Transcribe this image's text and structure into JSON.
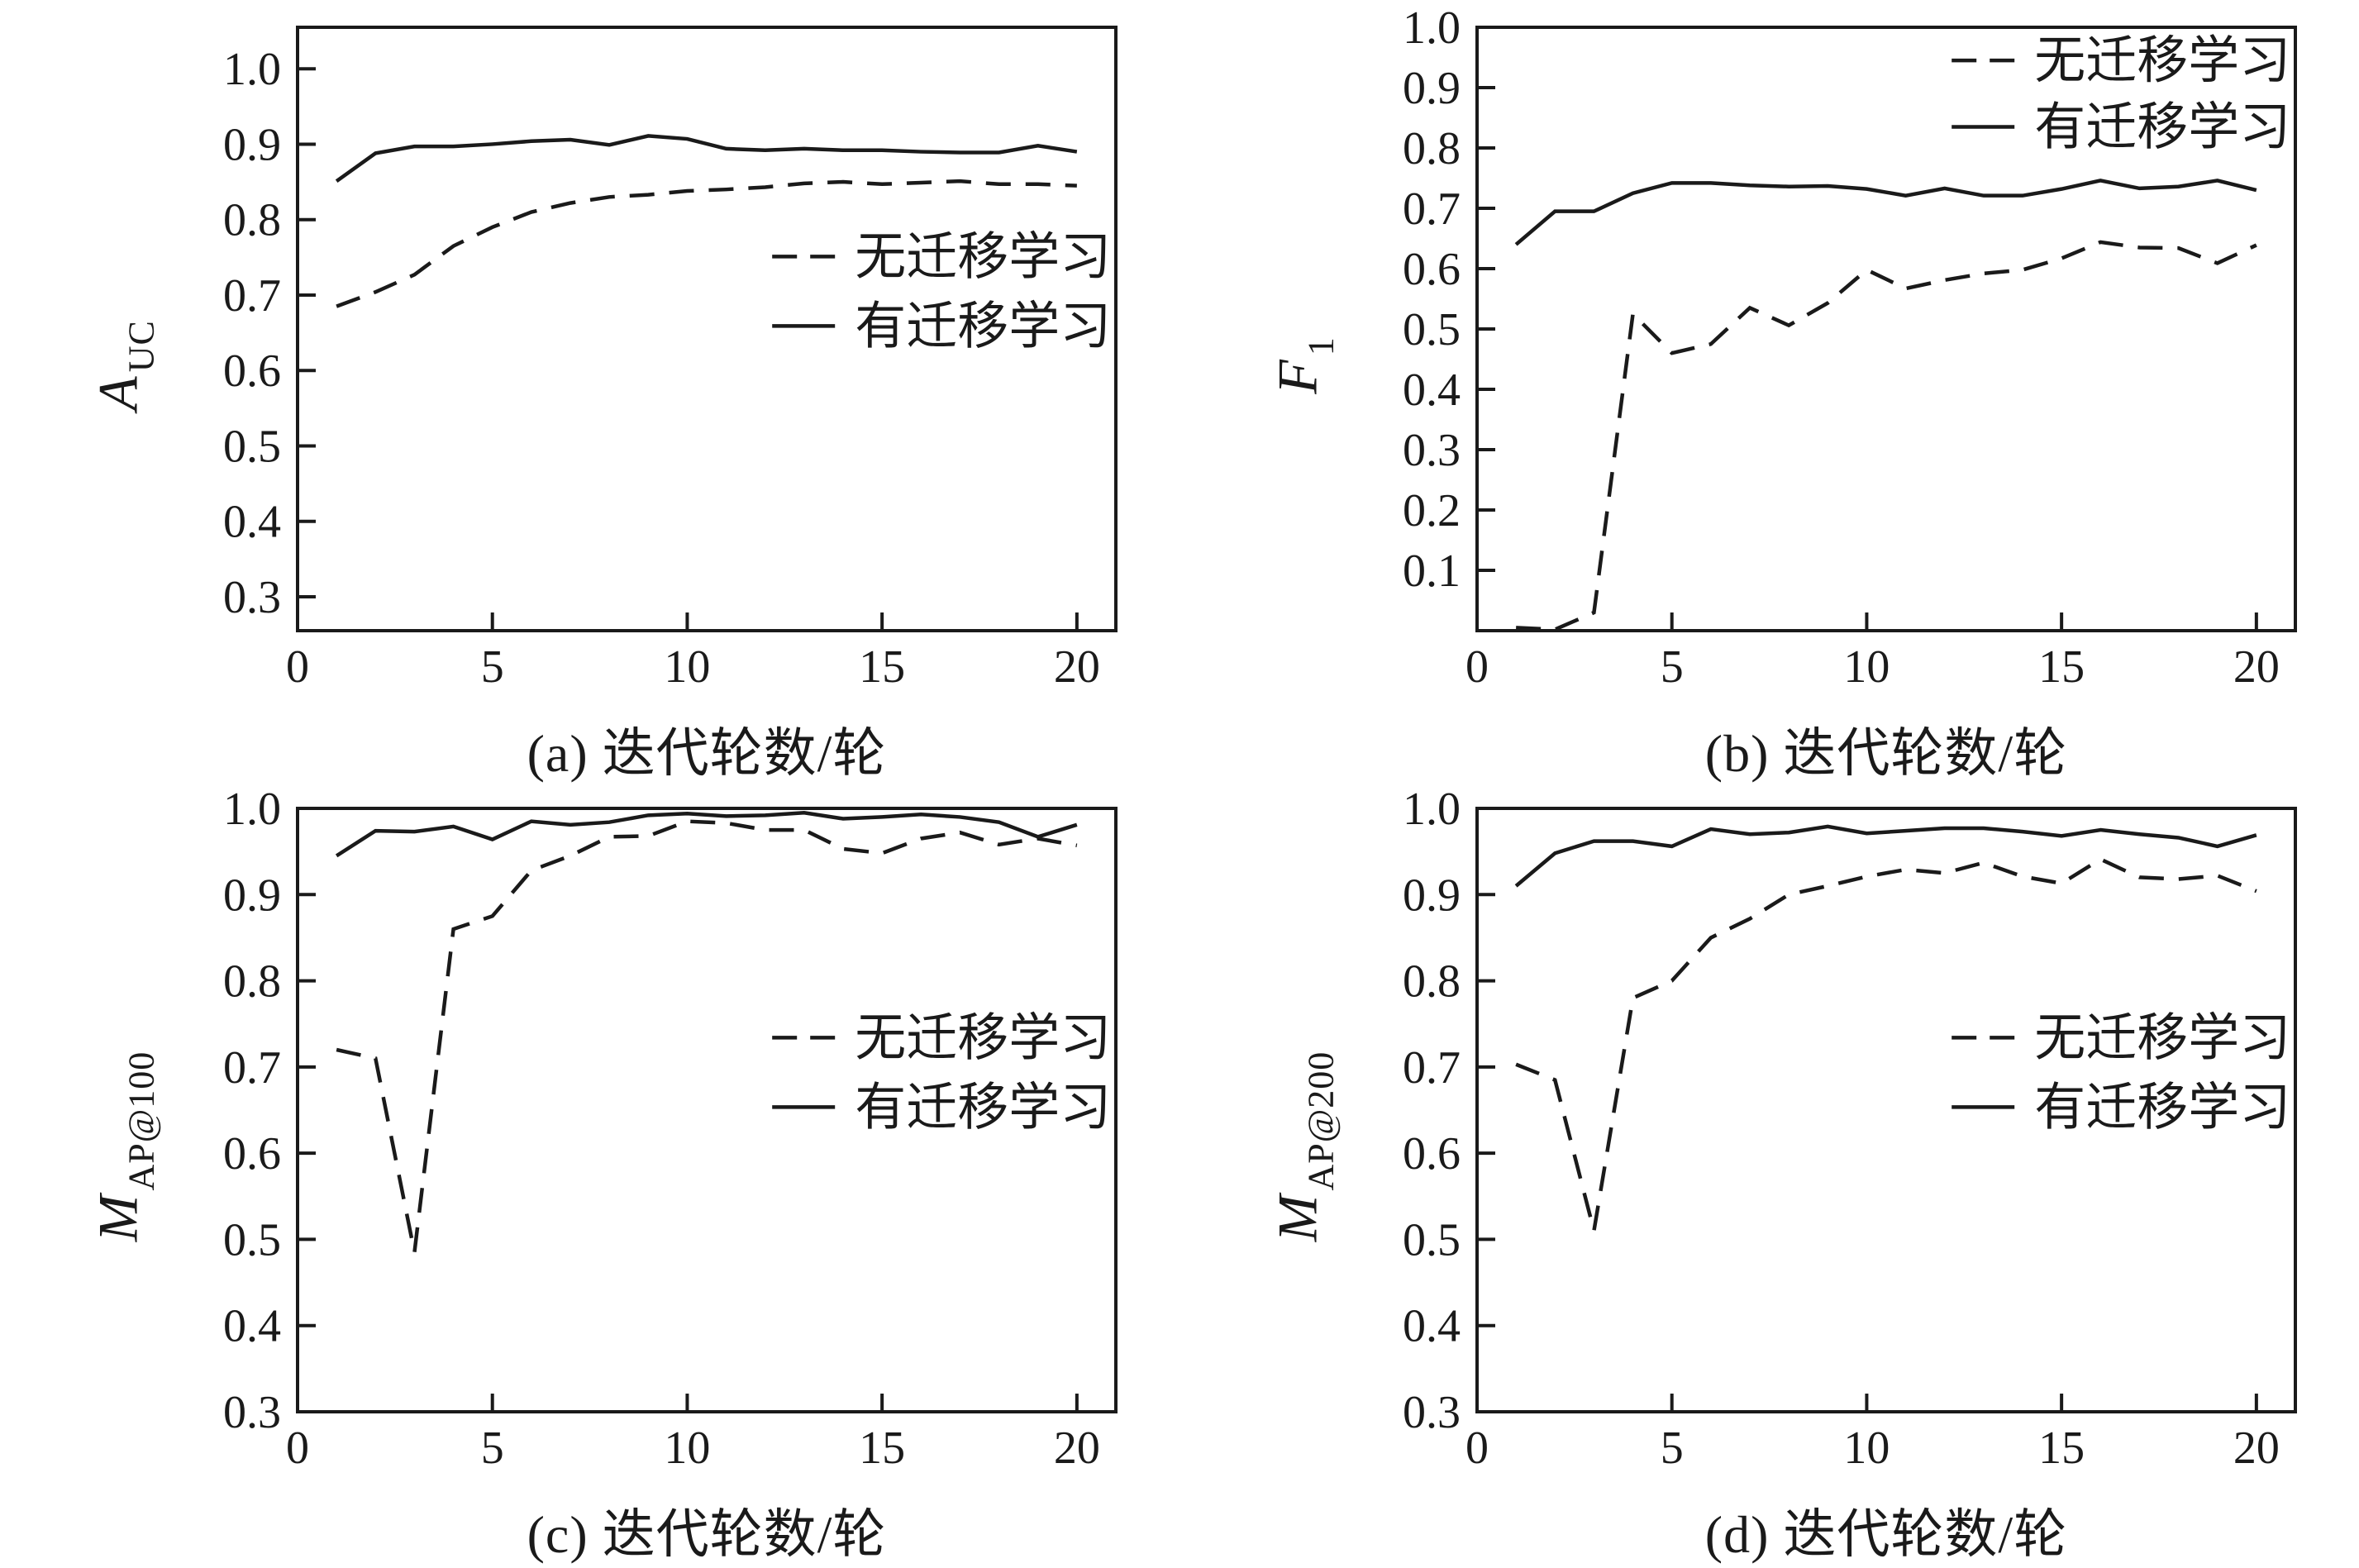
{
  "figure": {
    "background": "#ffffff",
    "line_color": "#1a1a1a"
  },
  "legend": {
    "no_transfer": "无迁移学习",
    "transfer": "有迁移学习"
  },
  "chart_data": [
    {
      "type": "line",
      "panel": "a",
      "caption": "(a) 迭代轮数/轮",
      "ylabel_main": "A",
      "ylabel_sub": "UC",
      "x": [
        1,
        2,
        3,
        4,
        5,
        6,
        7,
        8,
        9,
        10,
        11,
        12,
        13,
        14,
        15,
        16,
        17,
        18,
        19,
        20
      ],
      "xticks": [
        "0",
        "5",
        "10",
        "15",
        "20"
      ],
      "yticks": [
        "0.3",
        "0.4",
        "0.5",
        "0.6",
        "0.7",
        "0.8",
        "0.9",
        "1.0"
      ],
      "xlim": [
        0,
        21
      ],
      "ylim": [
        0.255,
        1.055
      ],
      "grid": false,
      "legend_position": "center-right",
      "series": [
        {
          "name": "无迁移学习",
          "style": "dashed",
          "values": [
            0.685,
            0.704,
            0.727,
            0.765,
            0.79,
            0.81,
            0.822,
            0.83,
            0.833,
            0.838,
            0.84,
            0.843,
            0.848,
            0.85,
            0.847,
            0.849,
            0.851,
            0.847,
            0.847,
            0.845
          ]
        },
        {
          "name": "有迁移学习",
          "style": "solid",
          "values": [
            0.851,
            0.888,
            0.897,
            0.897,
            0.9,
            0.904,
            0.906,
            0.899,
            0.911,
            0.907,
            0.894,
            0.892,
            0.894,
            0.892,
            0.892,
            0.89,
            0.889,
            0.889,
            0.898,
            0.89
          ]
        }
      ]
    },
    {
      "type": "line",
      "panel": "b",
      "caption": "(b) 迭代轮数/轮",
      "ylabel_main": "F",
      "ylabel_sub": "1",
      "x": [
        1,
        2,
        3,
        4,
        5,
        6,
        7,
        8,
        9,
        10,
        11,
        12,
        13,
        14,
        15,
        16,
        17,
        18,
        19,
        20
      ],
      "xticks": [
        "0",
        "5",
        "10",
        "15",
        "20"
      ],
      "yticks": [
        "0.1",
        "0.2",
        "0.3",
        "0.4",
        "0.5",
        "0.6",
        "0.7",
        "0.8",
        "0.9",
        "1.0"
      ],
      "xlim": [
        0,
        21
      ],
      "ylim": [
        0,
        1.0
      ],
      "grid": false,
      "legend_position": "top-right",
      "series": [
        {
          "name": "无迁移学习",
          "style": "dashed",
          "values": [
            0.005,
            0.002,
            0.03,
            0.525,
            0.46,
            0.475,
            0.535,
            0.506,
            0.543,
            0.598,
            0.567,
            0.581,
            0.592,
            0.598,
            0.617,
            0.644,
            0.635,
            0.634,
            0.609,
            0.639
          ]
        },
        {
          "name": "有迁移学习",
          "style": "solid",
          "values": [
            0.64,
            0.695,
            0.695,
            0.725,
            0.742,
            0.742,
            0.738,
            0.736,
            0.737,
            0.732,
            0.721,
            0.733,
            0.721,
            0.721,
            0.732,
            0.746,
            0.733,
            0.736,
            0.746,
            0.73
          ]
        }
      ]
    },
    {
      "type": "line",
      "panel": "c",
      "caption": "(c) 迭代轮数/轮",
      "ylabel_main": "M",
      "ylabel_sub": "AP@100",
      "x": [
        1,
        2,
        3,
        4,
        5,
        6,
        7,
        8,
        9,
        10,
        11,
        12,
        13,
        14,
        15,
        16,
        17,
        18,
        19,
        20
      ],
      "xticks": [
        "0",
        "5",
        "10",
        "15",
        "20"
      ],
      "yticks": [
        "0.3",
        "0.4",
        "0.5",
        "0.6",
        "0.7",
        "0.8",
        "0.9",
        "1.0"
      ],
      "xlim": [
        0,
        21
      ],
      "ylim": [
        0.3,
        1.0
      ],
      "grid": false,
      "legend_position": "center-right",
      "series": [
        {
          "name": "无迁移学习",
          "style": "dashed",
          "values": [
            0.72,
            0.71,
            0.485,
            0.86,
            0.875,
            0.928,
            0.945,
            0.967,
            0.968,
            0.985,
            0.983,
            0.975,
            0.975,
            0.953,
            0.948,
            0.965,
            0.972,
            0.958,
            0.965,
            0.957
          ]
        },
        {
          "name": "有迁移学习",
          "style": "solid",
          "values": [
            0.945,
            0.974,
            0.973,
            0.979,
            0.964,
            0.985,
            0.981,
            0.984,
            0.992,
            0.994,
            0.991,
            0.992,
            0.995,
            0.988,
            0.99,
            0.993,
            0.99,
            0.984,
            0.967,
            0.981
          ]
        }
      ]
    },
    {
      "type": "line",
      "panel": "d",
      "caption": "(d) 迭代轮数/轮",
      "ylabel_main": "M",
      "ylabel_sub": "AP@200",
      "x": [
        1,
        2,
        3,
        4,
        5,
        6,
        7,
        8,
        9,
        10,
        11,
        12,
        13,
        14,
        15,
        16,
        17,
        18,
        19,
        20
      ],
      "xticks": [
        "0",
        "5",
        "10",
        "15",
        "20"
      ],
      "yticks": [
        "0.3",
        "0.4",
        "0.5",
        "0.6",
        "0.7",
        "0.8",
        "0.9",
        "1.0"
      ],
      "xlim": [
        0,
        21
      ],
      "ylim": [
        0.3,
        1.0
      ],
      "grid": false,
      "legend_position": "center-right",
      "series": [
        {
          "name": "无迁移学习",
          "style": "dashed",
          "values": [
            0.703,
            0.685,
            0.51,
            0.78,
            0.8,
            0.85,
            0.872,
            0.9,
            0.91,
            0.921,
            0.929,
            0.925,
            0.937,
            0.921,
            0.913,
            0.941,
            0.92,
            0.918,
            0.922,
            0.904
          ]
        },
        {
          "name": "有迁移学习",
          "style": "solid",
          "values": [
            0.91,
            0.948,
            0.962,
            0.962,
            0.956,
            0.976,
            0.97,
            0.972,
            0.979,
            0.971,
            0.974,
            0.977,
            0.977,
            0.973,
            0.968,
            0.975,
            0.97,
            0.966,
            0.956,
            0.969
          ]
        }
      ]
    }
  ]
}
